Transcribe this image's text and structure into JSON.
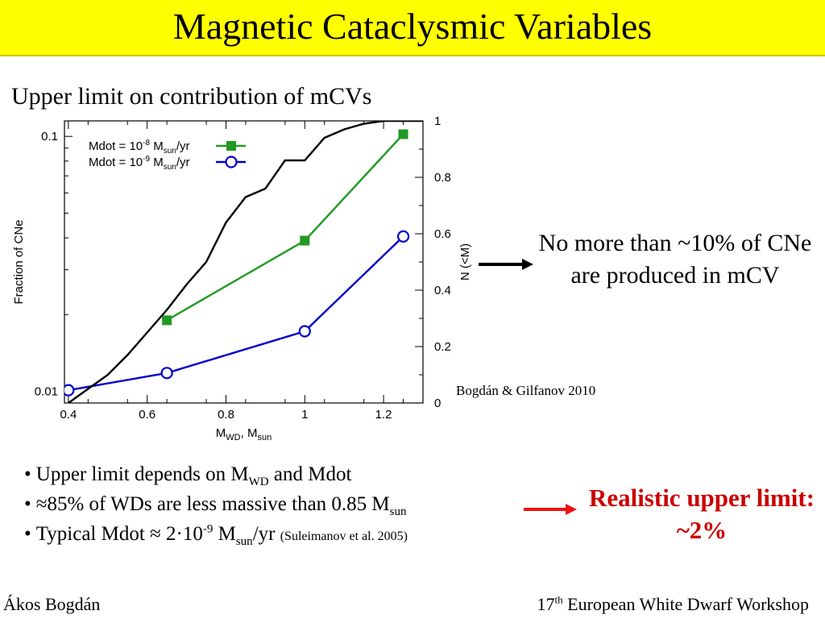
{
  "slide": {
    "title": "Magnetic Cataclysmic Variables",
    "subtitle": "Upper limit on contribution of mCVs",
    "conclusion": "No more than ~10% of CNe are produced in mCV",
    "credit": "Bogdán & Gilfanov 2010",
    "bullets": [
      {
        "text_before": "Upper limit depends on M",
        "sub": "WD",
        "text_after": " and Mdot"
      },
      {
        "text_before": "≈85% of WDs are less massive than 0.85 M",
        "sub": "sun",
        "text_after": ""
      },
      {
        "text_before": "Typical Mdot ≈ 2·10",
        "sup": "-9",
        "text_mid": " M",
        "sub": "sun",
        "text_after": "/yr ",
        "small": "(Suleimanov et al. 2005)"
      }
    ],
    "realistic": "Realistic upper limit: ~2%",
    "footer_left": "Ákos Bogdán",
    "footer_right_num": "17",
    "footer_right_sup": "th",
    "footer_right_rest": " European White Dwarf Workshop",
    "colors": {
      "title_bg": "#ffff00",
      "green": "#229922",
      "blue": "#0000cc",
      "red_arrow": "#ee1111",
      "realistic_text": "#cc0000"
    }
  },
  "chart_data": {
    "type": "line",
    "xlabel": "M",
    "xlabel_sub": "WD",
    "xlabel_mid": ", M",
    "xlabel_sub2": "sun",
    "ylabel": "Fraction of CNe",
    "y2label": "N (<M)",
    "xlim": [
      0.39,
      1.3
    ],
    "ylim": [
      0.009,
      0.115
    ],
    "y2lim": [
      0,
      1
    ],
    "yscale": "log",
    "xticks": [
      0.4,
      0.6,
      0.8,
      1,
      1.2
    ],
    "xtick_labels": [
      "0.4",
      "0.6",
      "0.8",
      "1",
      "1.2"
    ],
    "yticks": [
      0.01,
      0.1
    ],
    "ytick_labels": [
      "0.01",
      "0.1"
    ],
    "y2ticks": [
      0,
      0.2,
      0.4,
      0.6,
      0.8,
      1
    ],
    "y2tick_labels": [
      "0",
      "0.2",
      "0.4",
      "0.6",
      "0.8",
      "1"
    ],
    "legend_position": "top-left",
    "grid": false,
    "series": [
      {
        "name": "Mdot = 10",
        "name_sup": "-8",
        "name_mid": " M",
        "name_sub": "sun",
        "name_end": "/yr",
        "marker": "square",
        "color": "#229922",
        "x": [
          0.65,
          1.0,
          1.25
        ],
        "y": [
          0.019,
          0.039,
          0.102
        ]
      },
      {
        "name": "Mdot = 10",
        "name_sup": "-9",
        "name_mid": " M",
        "name_sub": "sun",
        "name_end": "/yr",
        "marker": "circle",
        "color": "#0000cc",
        "x": [
          0.4,
          0.65,
          1.0,
          1.25
        ],
        "y": [
          0.0101,
          0.0118,
          0.0172,
          0.0405
        ]
      },
      {
        "name": "",
        "axis": "right",
        "marker": "none",
        "color": "#000000",
        "x": [
          0.4,
          0.45,
          0.5,
          0.55,
          0.6,
          0.65,
          0.7,
          0.75,
          0.8,
          0.85,
          0.9,
          0.95,
          1.0,
          1.05,
          1.1,
          1.15,
          1.2,
          1.25,
          1.3
        ],
        "y": [
          0.0,
          0.05,
          0.1,
          0.17,
          0.25,
          0.33,
          0.42,
          0.5,
          0.64,
          0.73,
          0.76,
          0.86,
          0.86,
          0.94,
          0.97,
          0.99,
          1.0,
          1.0,
          1.0
        ]
      }
    ]
  }
}
